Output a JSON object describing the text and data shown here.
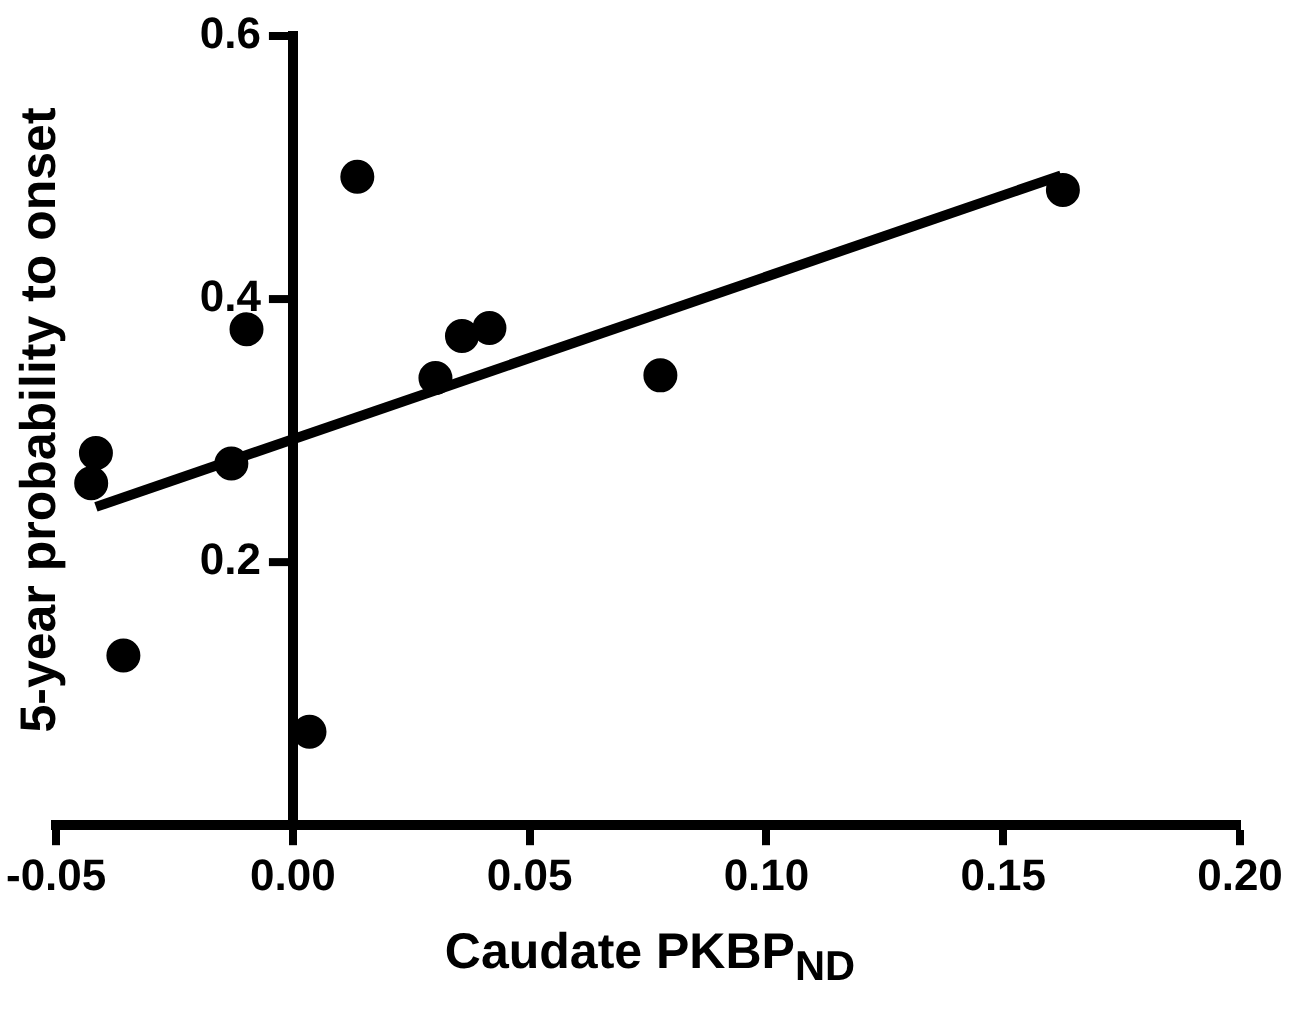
{
  "chart_data": {
    "type": "scatter",
    "xlabel": "Caudate PKBP$_{ND}$",
    "ylabel": "5-year probability to onset",
    "xlim": [
      -0.05,
      0.2
    ],
    "xticks": [
      {
        "value": -0.05,
        "label": "-0.05"
      },
      {
        "value": 0,
        "label": "0.00"
      },
      {
        "value": 0.05,
        "label": "0.05"
      },
      {
        "value": 0.1,
        "label": "0.10"
      },
      {
        "value": 0.15,
        "label": "0.15"
      },
      {
        "value": 0.2,
        "label": "0.20"
      }
    ],
    "ylim": [
      0,
      0.6
    ],
    "yticks": [
      0.2,
      0.4,
      0.6
    ],
    "grid": false,
    "series": [
      {
        "type": "scatter",
        "marker": "circle",
        "color": "#000000",
        "x": [
          0.0136,
          -0.0098,
          0.0357,
          0.0415,
          0.0301,
          -0.0416,
          -0.0426,
          -0.013,
          -0.0358,
          0.0035,
          0.0776,
          0.1626
        ],
        "values": [
          0.493,
          0.377,
          0.372,
          0.378,
          0.34,
          0.283,
          0.26,
          0.275,
          0.129,
          0.071,
          0.342,
          0.483
        ]
      },
      {
        "type": "line",
        "color": "#000000",
        "x": [
          -0.0416,
          0.1622
        ],
        "values": [
          0.242,
          0.494
        ]
      }
    ]
  }
}
